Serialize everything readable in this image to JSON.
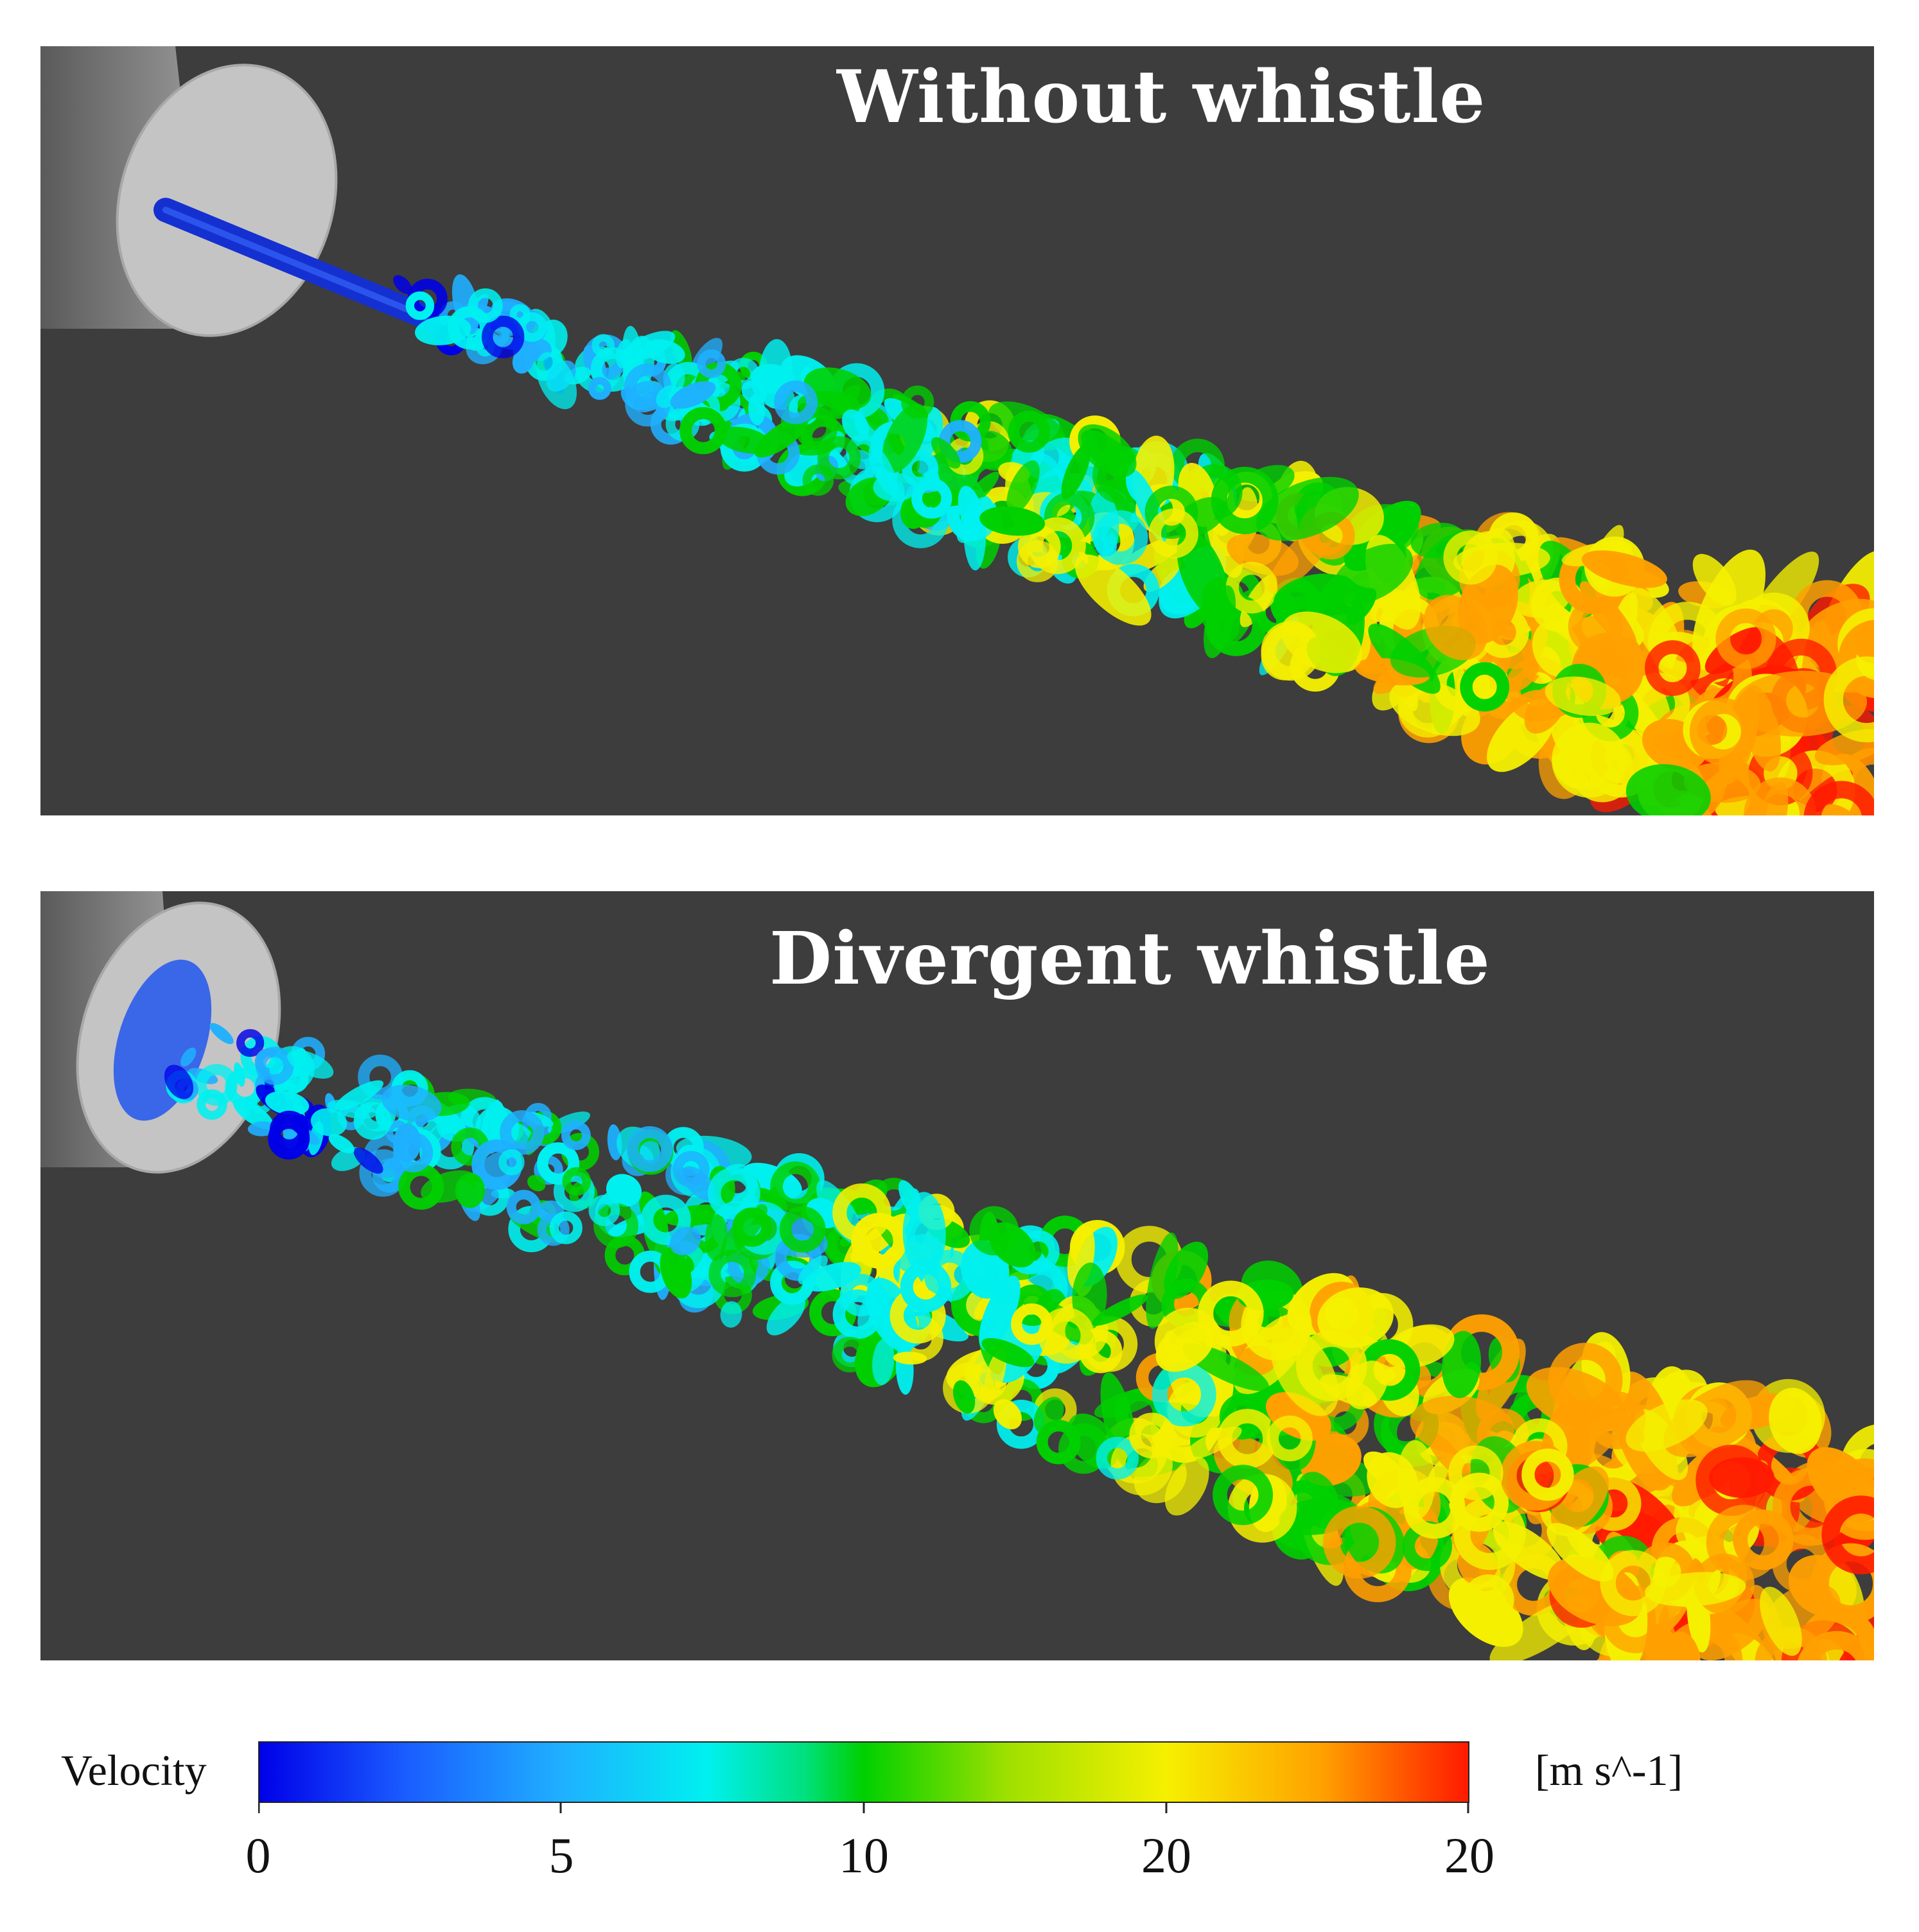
{
  "panels": [
    {
      "title": "Without whistle"
    },
    {
      "title": "Divergent whistle"
    }
  ],
  "colorbar": {
    "label": "Velocity",
    "unit": "[m s^-1]",
    "ticks": [
      "0",
      "5",
      "10",
      "20",
      "20"
    ],
    "colors": [
      "#0000e8",
      "#1fb0ff",
      "#00f0f0",
      "#00d000",
      "#f5f000",
      "#ffa000",
      "#ff1a00"
    ]
  },
  "colors": {
    "background": "#3d3d3d",
    "nozzle_face": "#c4c4c4",
    "nozzle_side": "#8a8a8a",
    "core_jet": "#1530d0"
  }
}
